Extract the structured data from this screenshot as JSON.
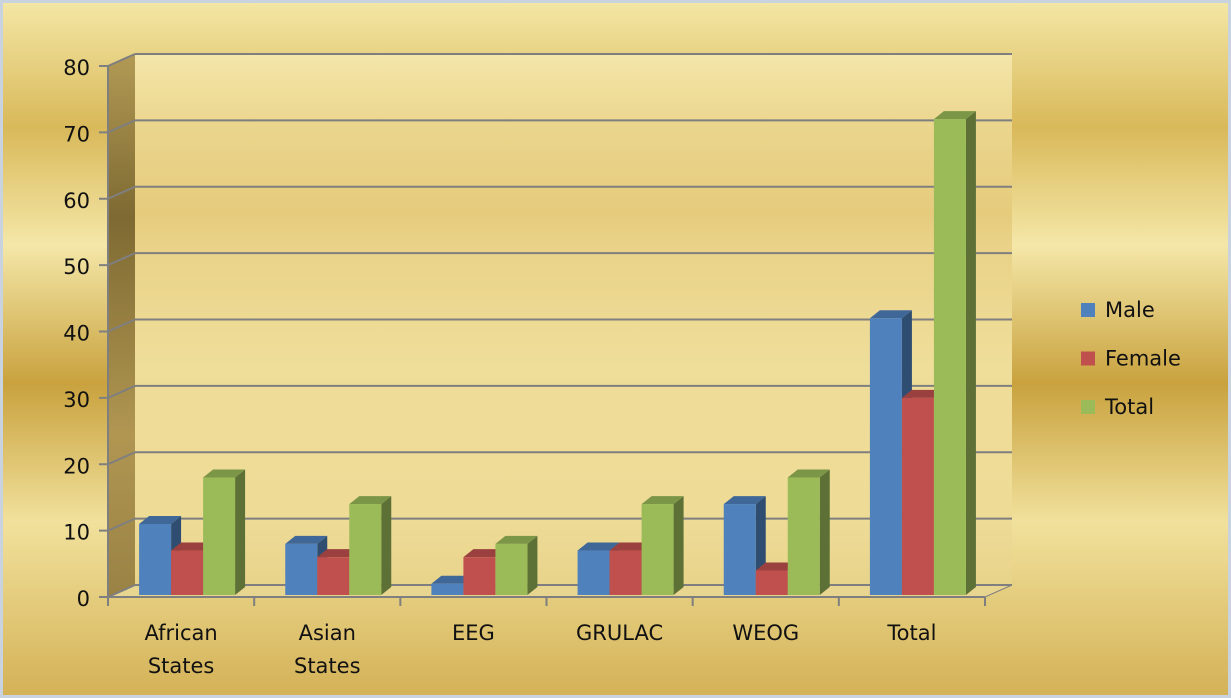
{
  "chart_data": {
    "type": "bar3d",
    "categories": [
      "African States",
      "Asian States",
      "EEG",
      "GRULAC",
      "WEOG",
      "Total"
    ],
    "series": [
      {
        "name": "Male",
        "color": "#4f81bd",
        "values": [
          11,
          8,
          2,
          7,
          14,
          42
        ]
      },
      {
        "name": "Female",
        "color": "#c0504d",
        "values": [
          7,
          6,
          6,
          7,
          4,
          30
        ]
      },
      {
        "name": "Total",
        "color": "#9bbb59",
        "values": [
          18,
          14,
          8,
          14,
          18,
          72
        ]
      }
    ],
    "ylim": [
      0,
      80
    ],
    "yticks": [
      0,
      10,
      20,
      30,
      40,
      50,
      60,
      70,
      80
    ],
    "grid": true,
    "legend": "right"
  }
}
